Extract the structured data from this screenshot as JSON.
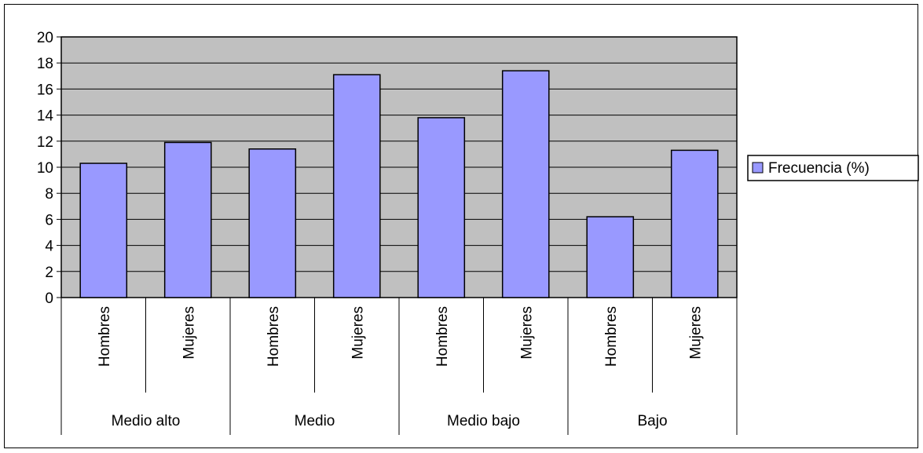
{
  "chart_data": {
    "type": "bar",
    "groups": [
      {
        "label": "Medio alto",
        "categories": [
          "Hombres",
          "Mujeres"
        ]
      },
      {
        "label": "Medio",
        "categories": [
          "Hombres",
          "Mujeres"
        ]
      },
      {
        "label": "Medio bajo",
        "categories": [
          "Hombres",
          "Mujeres"
        ]
      },
      {
        "label": "Bajo",
        "categories": [
          "Hombres",
          "Mujeres"
        ]
      }
    ],
    "categories": [
      "Hombres",
      "Mujeres",
      "Hombres",
      "Mujeres",
      "Hombres",
      "Mujeres",
      "Hombres",
      "Mujeres"
    ],
    "series": [
      {
        "name": "Frecuencia (%)",
        "values": [
          10.3,
          11.9,
          11.4,
          17.1,
          13.8,
          17.4,
          6.2,
          11.3
        ]
      }
    ],
    "ylim": [
      0,
      20
    ],
    "yticks": [
      0,
      2,
      4,
      6,
      8,
      10,
      12,
      14,
      16,
      18,
      20
    ],
    "grid": true,
    "legend": "right",
    "colors": {
      "bar": "#9999ff",
      "plot_bg": "#c0c0c0",
      "grid": "#000000"
    }
  }
}
